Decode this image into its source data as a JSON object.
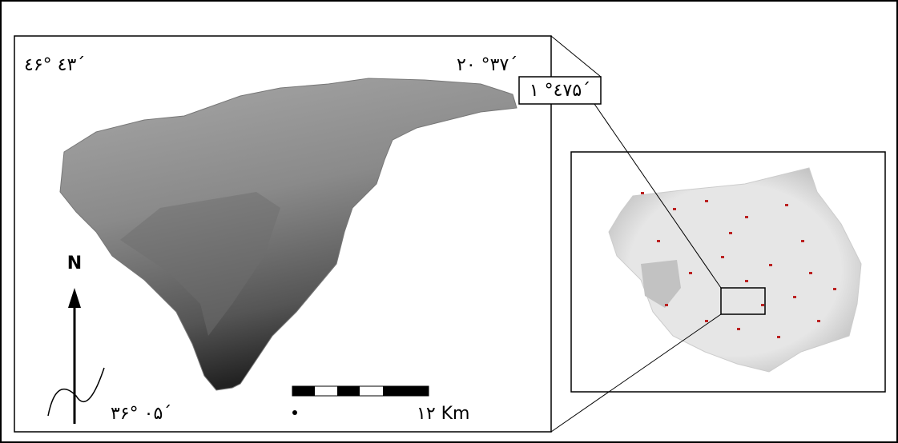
{
  "map": {
    "labels": {
      "top_left": "٤۶° ٤٣´",
      "top_right": "٣٧° ٢٠´",
      "callout": "٤٧° ١۵´",
      "bottom_left": "٣۶° ٠۵´"
    },
    "north": "N",
    "scale": "١٢ Km"
  }
}
